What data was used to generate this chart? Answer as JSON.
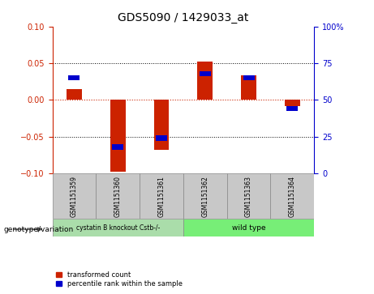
{
  "title": "GDS5090 / 1429033_at",
  "samples": [
    "GSM1151359",
    "GSM1151360",
    "GSM1151361",
    "GSM1151362",
    "GSM1151363",
    "GSM1151364"
  ],
  "red_values": [
    0.015,
    -0.098,
    -0.068,
    0.052,
    0.033,
    -0.008
  ],
  "blue_values_pct": [
    65,
    18,
    24,
    68,
    65,
    44
  ],
  "ylim_left": [
    -0.1,
    0.1
  ],
  "ylim_right": [
    0,
    100
  ],
  "yticks_left": [
    -0.1,
    -0.05,
    0,
    0.05,
    0.1
  ],
  "yticks_right": [
    0,
    25,
    50,
    75,
    100
  ],
  "bar_width": 0.35,
  "group_labels": [
    "cystatin B knockout Cstb-/-",
    "wild type"
  ],
  "group_colors": [
    "#aaddaa",
    "#77ee77"
  ],
  "genotype_label": "genotype/variation",
  "legend_red": "transformed count",
  "legend_blue": "percentile rank within the sample",
  "red_color": "#cc2200",
  "blue_color": "#0000cc",
  "left_tick_color": "#cc2200",
  "right_tick_color": "#0000cc",
  "sample_bg_color": "#c8c8c8",
  "zero_line_color": "#cc2200",
  "title_fontsize": 10
}
